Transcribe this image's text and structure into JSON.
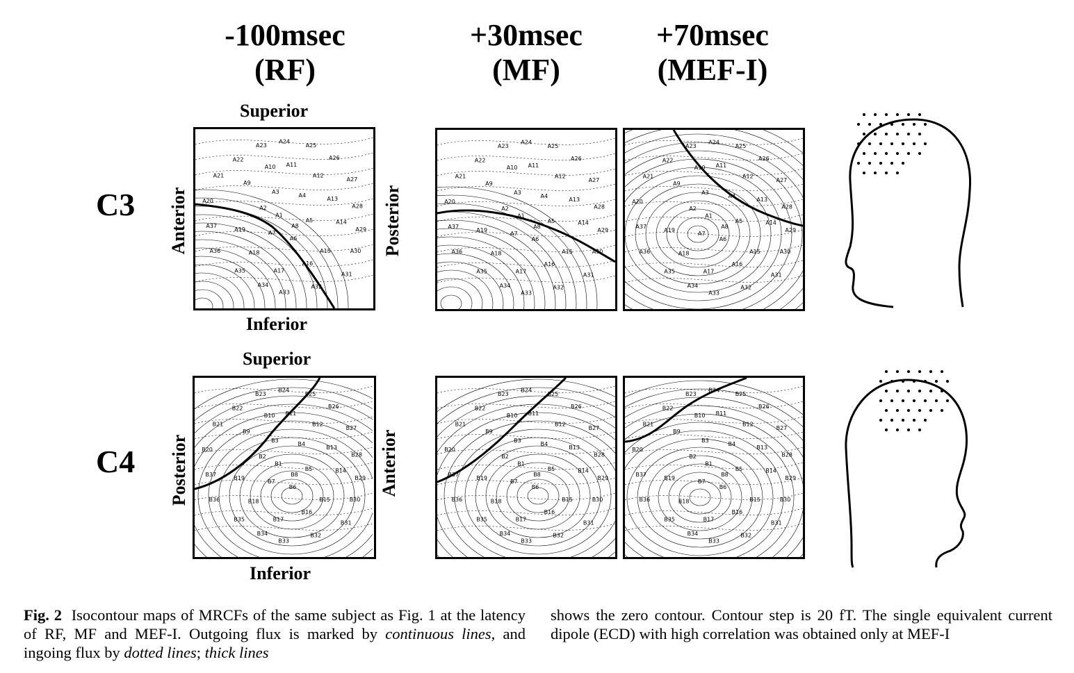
{
  "headers": {
    "rf": {
      "time": "-100msec",
      "tag": "(RF)"
    },
    "mf": {
      "time": "+30msec",
      "tag": "(MF)"
    },
    "mef": {
      "time": "+70msec",
      "tag": "(MEF-I)"
    }
  },
  "rows": {
    "c3": {
      "label": "C3",
      "superior": "Superior",
      "inferior": "Inferior",
      "left": "Anterior",
      "right": "Posterior",
      "sensors": [
        "A1",
        "A2",
        "A3",
        "A4",
        "A5",
        "A6",
        "A7",
        "A8",
        "A9",
        "A10",
        "A11",
        "A12",
        "A13",
        "A14",
        "A15",
        "A16",
        "A17",
        "A18",
        "A19",
        "A20",
        "A21",
        "A22",
        "A23",
        "A24",
        "A25",
        "A26",
        "A27",
        "A28",
        "A29",
        "A30",
        "A31",
        "A32",
        "A33",
        "A34",
        "A35",
        "A36",
        "A37"
      ]
    },
    "c4": {
      "label": "C4",
      "superior": "Superior",
      "inferior": "Inferior",
      "left": "Posterior",
      "right": "Anterior",
      "sensors": [
        "B1",
        "B2",
        "B3",
        "B4",
        "B5",
        "B6",
        "B7",
        "B8",
        "B9",
        "B10",
        "B11",
        "B12",
        "B13",
        "B14",
        "B15",
        "B16",
        "B17",
        "B18",
        "B19",
        "B20",
        "B21",
        "B22",
        "B23",
        "B24",
        "B25",
        "B26",
        "B27",
        "B28",
        "B29",
        "B30",
        "B31",
        "B32",
        "B33",
        "B34",
        "B35",
        "B36",
        "B37"
      ]
    }
  },
  "caption": {
    "label": "Fig. 2",
    "p1": "Isocontour maps of MRCFs of the same subject as Fig. 1 at the latency of RF, MF and MEF-I. Outgoing flux is marked by",
    "em1": "continuous lines",
    "p2": ", and ingoing flux by",
    "em2": "dotted lines",
    "p3": ";",
    "em3": "thick lines",
    "col2": "shows the zero contour. Contour step is 20 fT. The single equivalent current dipole (ECD) with high correlation was obtained only at MEF-I"
  }
}
